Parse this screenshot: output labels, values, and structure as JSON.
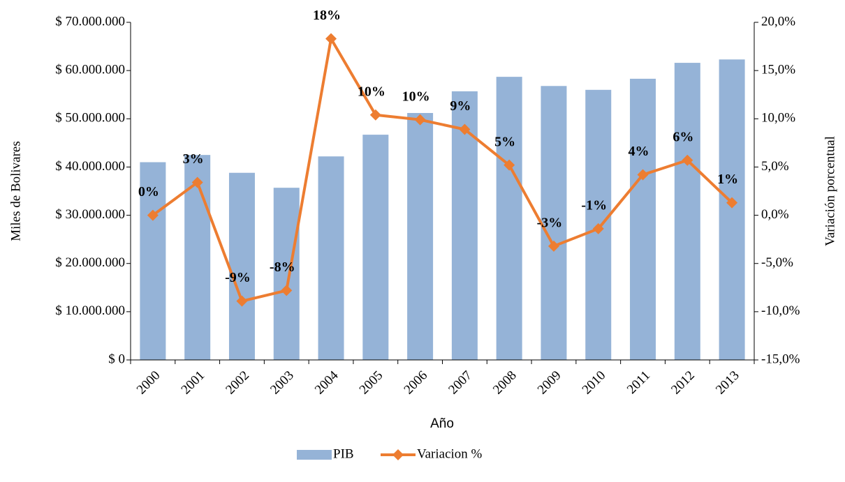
{
  "chart_data": {
    "type": "bar_line",
    "x_label": "Año",
    "y_label": "Miles de Bolivares",
    "y2_label": "Variación porcentual",
    "categories": [
      "2000",
      "2001",
      "2002",
      "2003",
      "2004",
      "2005",
      "2006",
      "2007",
      "2008",
      "2009",
      "2010",
      "2011",
      "2012",
      "2013"
    ],
    "series": [
      {
        "name": "PIB",
        "type": "bar",
        "color": "#95b3d7",
        "values": [
          41000000,
          42500000,
          38800000,
          35700000,
          42200000,
          46700000,
          51200000,
          55700000,
          58700000,
          56800000,
          56000000,
          58300000,
          61600000,
          62300000
        ]
      },
      {
        "name": "Variacion %",
        "type": "line",
        "axis": "y2",
        "color": "#ed7d31",
        "values": [
          0,
          3.4,
          -8.9,
          -7.8,
          18.3,
          10.4,
          9.9,
          8.9,
          5.2,
          -3.2,
          -1.4,
          4.2,
          5.7,
          1.3
        ],
        "value_labels": [
          "0%",
          "3%",
          "-9%",
          "-8%",
          "18%",
          "10%",
          "10%",
          "9%",
          "5%",
          "-3%",
          "-1%",
          "4%",
          "6%",
          "1%"
        ]
      }
    ],
    "ylim": [
      0,
      70000000
    ],
    "yticks": [
      {
        "value": 0,
        "label": "$ 0"
      },
      {
        "value": 10000000,
        "label": "$ 10.000.000"
      },
      {
        "value": 20000000,
        "label": "$ 20.000.000"
      },
      {
        "value": 30000000,
        "label": "$ 30.000.000"
      },
      {
        "value": 40000000,
        "label": "$ 40.000.000"
      },
      {
        "value": 50000000,
        "label": "$ 50.000.000"
      },
      {
        "value": 60000000,
        "label": "$ 60.000.000"
      },
      {
        "value": 70000000,
        "label": "$ 70.000.000"
      }
    ],
    "y2lim": [
      -15,
      20
    ],
    "y2ticks": [
      {
        "value": -15,
        "label": "-15,0%"
      },
      {
        "value": -10,
        "label": "-10,0%"
      },
      {
        "value": -5,
        "label": "-5,0%"
      },
      {
        "value": 0,
        "label": "0,0%"
      },
      {
        "value": 5,
        "label": "5,0%"
      },
      {
        "value": 10,
        "label": "10,0%"
      },
      {
        "value": 15,
        "label": "15,0%"
      },
      {
        "value": 20,
        "label": "20,0%"
      }
    ],
    "legend": "bottom"
  }
}
